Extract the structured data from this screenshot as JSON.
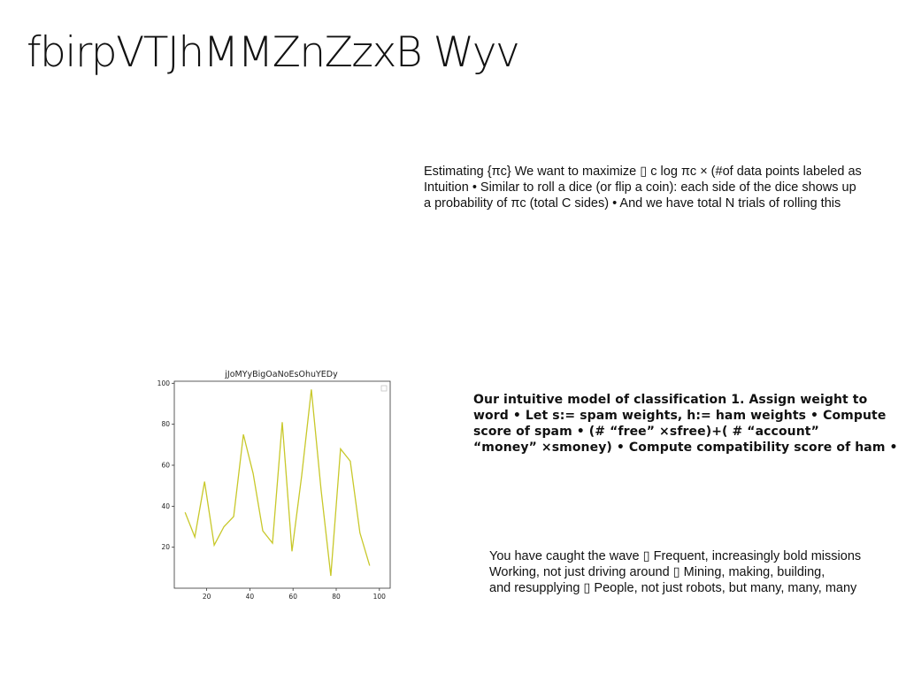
{
  "slide": {
    "title": "fbirpVTJhMMZnZzxB Wyv"
  },
  "text_blocks": {
    "estimating": [
      "Estimating {πc} We want to maximize ▯ c log πc × (#of data points labeled as",
      "Intuition • Similar to roll a dice (or flip a coin): each side of the dice shows up",
      "a probability of πc (total C sides) • And we have total N trials of rolling this"
    ],
    "classification": [
      "Our intuitive model of classification 1. Assign weight to",
      "word • Let s:= spam weights, h:= ham weights • Compute",
      "score of spam • (# “free” ×sfree)+( # “account”",
      "“money” ×smoney) • Compute compatibility score of ham •"
    ],
    "wave": [
      "You have caught the wave ▯ Frequent, increasingly bold missions",
      "Working, not just driving around ▯ Mining, making, building,",
      "and resupplying ▯ People, not just robots, but many, many, many"
    ]
  },
  "chart_data": {
    "type": "line",
    "title": "jJoMYyBigOaNoEsOhuYEDy",
    "xlabel": "",
    "ylabel": "",
    "x": [
      10,
      14.5,
      19,
      23.5,
      28,
      32.5,
      37,
      41.5,
      46,
      50.5,
      55,
      59.5,
      64,
      68.5,
      73,
      77.5,
      82,
      86.5,
      91,
      95.5,
      100
    ],
    "series": [
      {
        "values": [
          37,
          25,
          52,
          21,
          30,
          35,
          75,
          56,
          28,
          22,
          81,
          18,
          55,
          97,
          48,
          6,
          68,
          62,
          27,
          11,
          null
        ]
      }
    ],
    "xticks": [
      20,
      40,
      60,
      80,
      100
    ],
    "yticks": [
      20,
      40,
      60,
      80,
      100
    ],
    "xlim": [
      5,
      105
    ],
    "ylim": [
      0,
      101
    ],
    "line_color": "#c8c82a",
    "grid": false,
    "legend": "top-right"
  }
}
